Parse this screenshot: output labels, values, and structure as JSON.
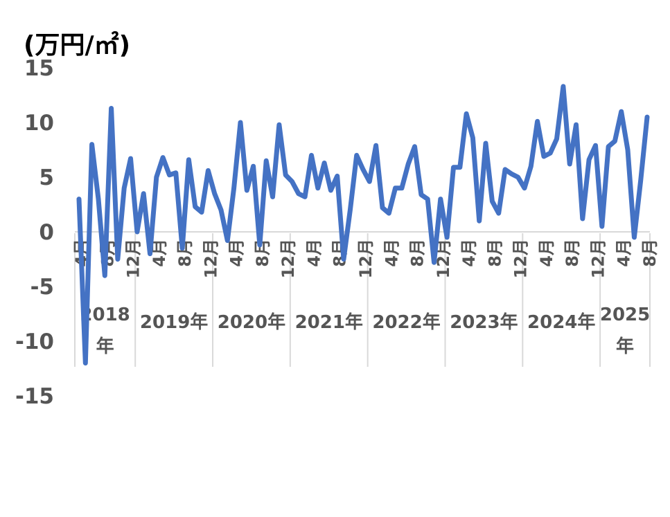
{
  "chart_data": {
    "type": "line",
    "unit_label": "(万円/㎡)",
    "ylim": [
      -15,
      15
    ],
    "yticks": [
      "15",
      "10",
      "5",
      "0",
      "-5",
      "-10",
      "-15"
    ],
    "month_tick_labels": [
      "4月",
      "8月",
      "12月",
      "4月",
      "8月",
      "12月",
      "4月",
      "8月",
      "12月",
      "4月",
      "8月",
      "12月",
      "4月",
      "8月",
      "12月",
      "4月",
      "8月",
      "12月",
      "4月",
      "8月",
      "12月",
      "4月",
      "8月"
    ],
    "year_labels": [
      {
        "text": "2018",
        "sub": "年"
      },
      {
        "text": "2019年",
        "sub": ""
      },
      {
        "text": "2020年",
        "sub": ""
      },
      {
        "text": "2021年",
        "sub": ""
      },
      {
        "text": "2022年",
        "sub": ""
      },
      {
        "text": "2023年",
        "sub": ""
      },
      {
        "text": "2024年",
        "sub": ""
      },
      {
        "text": "2025",
        "sub": "年"
      }
    ],
    "series": [
      {
        "color": "#4472C4",
        "values": [
          3.0,
          -12.0,
          8.0,
          3.0,
          -4.0,
          11.3,
          -2.5,
          4.0,
          6.7,
          0.0,
          3.5,
          -2.0,
          5.0,
          6.8,
          5.2,
          5.4,
          -1.5,
          6.6,
          2.3,
          1.8,
          5.6,
          3.5,
          2.0,
          -0.8,
          4.0,
          10.0,
          3.8,
          6.0,
          -1.2,
          6.5,
          3.2,
          9.8,
          5.2,
          4.6,
          3.5,
          3.2,
          7.0,
          4.0,
          6.3,
          3.8,
          5.1,
          -2.5,
          2.0,
          7.0,
          5.7,
          4.6,
          7.9,
          2.2,
          1.7,
          4.0,
          4.0,
          6.2,
          7.8,
          3.4,
          3.0,
          -2.8,
          3.0,
          -0.5,
          5.9,
          5.9,
          10.8,
          8.6,
          1.0,
          8.1,
          2.8,
          1.7,
          5.7,
          5.3,
          5.0,
          4.0,
          6.0,
          10.1,
          6.9,
          7.2,
          8.5,
          13.3,
          6.2,
          9.8,
          1.2,
          6.6,
          7.9,
          0.5,
          7.8,
          8.3,
          11.0,
          7.5,
          -0.5,
          4.7,
          10.5
        ]
      }
    ]
  }
}
